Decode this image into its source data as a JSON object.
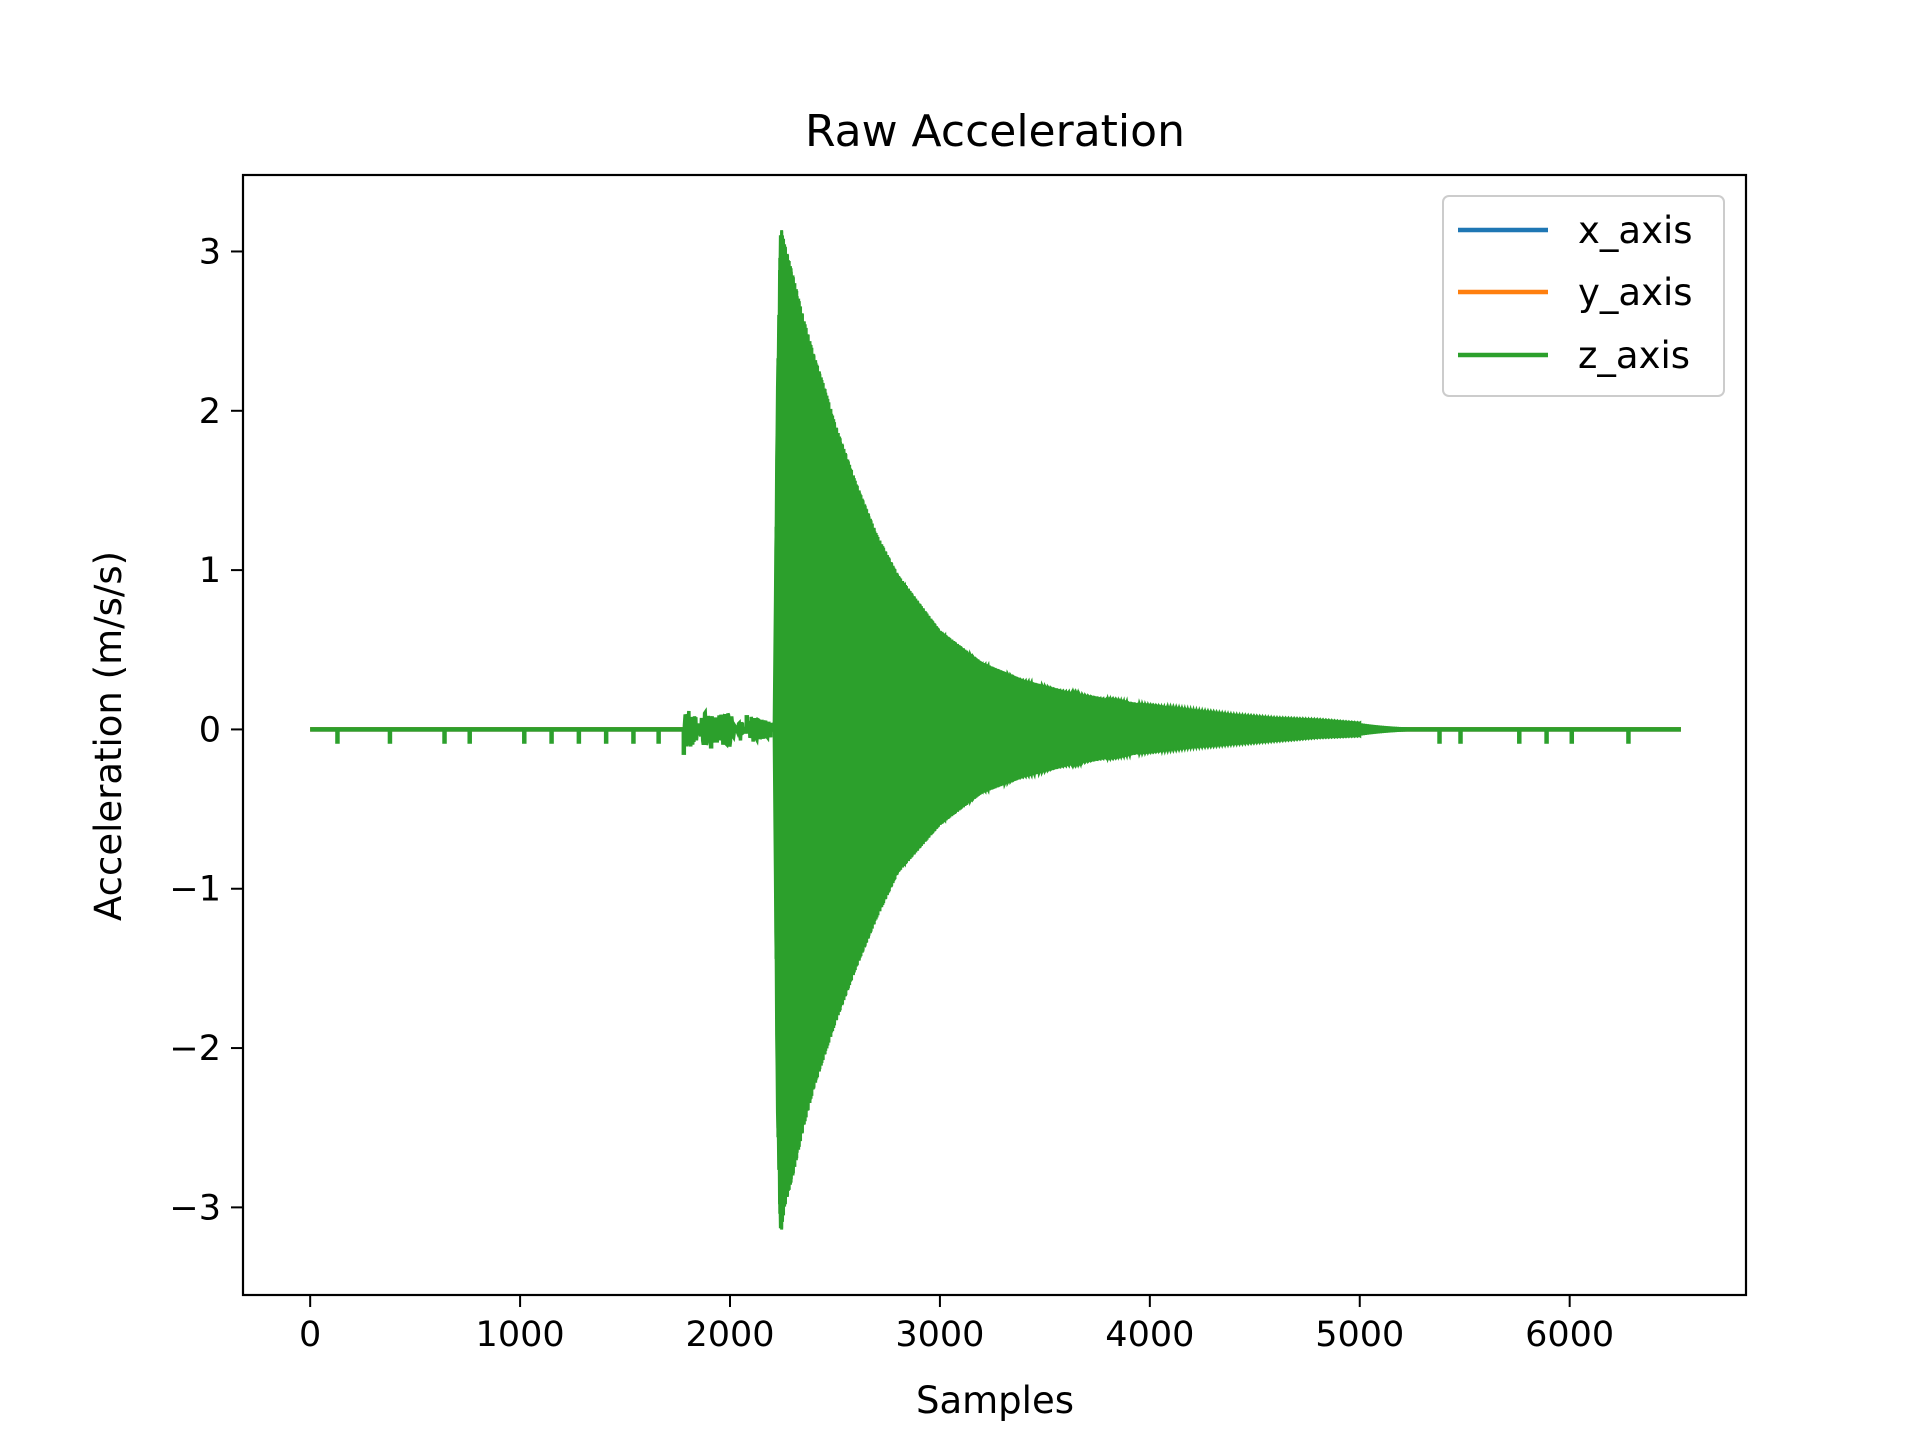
{
  "chart_data": {
    "type": "line",
    "title": "Raw Acceleration",
    "xlabel": "Samples",
    "ylabel": "Acceleration (m/s/s)",
    "xlim": [
      -320,
      6840
    ],
    "ylim": [
      -3.55,
      3.48
    ],
    "xticks": [
      0,
      1000,
      2000,
      3000,
      4000,
      5000,
      6000
    ],
    "xtick_labels": [
      "0",
      "1000",
      "2000",
      "3000",
      "4000",
      "5000",
      "6000"
    ],
    "yticks": [
      -3,
      -2,
      -1,
      0,
      1,
      2,
      3
    ],
    "ytick_labels": [
      "−3",
      "−2",
      "−1",
      "0",
      "1",
      "2",
      "3"
    ],
    "grid": false,
    "legend_position": "top-right",
    "series": [
      {
        "name": "x_axis",
        "color": "#1f77b4",
        "x": [
          0,
          6530
        ],
        "y": [
          0,
          0
        ]
      },
      {
        "name": "y_axis",
        "color": "#ff7f0e",
        "x": [
          0,
          6530
        ],
        "y": [
          0,
          0
        ]
      },
      {
        "name": "z_axis",
        "color": "#2ca02c",
        "sample_range": [
          0,
          6530
        ],
        "baseline": 0,
        "envelope_upper": {
          "x": [
            2210,
            2225,
            2240,
            2260,
            2300,
            2350,
            2400,
            2450,
            2500,
            2600,
            2700,
            2800,
            3000,
            3200,
            3400,
            3600,
            3800,
            4000,
            4200,
            4400,
            4600,
            4800,
            5000
          ],
          "y": [
            0,
            2.12,
            3.17,
            3.05,
            2.85,
            2.58,
            2.35,
            2.15,
            1.92,
            1.55,
            1.22,
            0.97,
            0.62,
            0.42,
            0.31,
            0.24,
            0.19,
            0.15,
            0.12,
            0.09,
            0.07,
            0.06,
            0.04
          ]
        },
        "envelope_lower": {
          "x": [
            2210,
            2225,
            2240,
            2260,
            2300,
            2350,
            2400,
            2450,
            2500,
            2600,
            2700,
            2800,
            3000,
            3200,
            3400,
            3600,
            3800,
            4000,
            4200,
            4400,
            4600,
            4800,
            5000
          ],
          "y": [
            0,
            -2.4,
            -3.2,
            -3.0,
            -2.8,
            -2.5,
            -2.25,
            -2.05,
            -1.85,
            -1.5,
            -1.18,
            -0.9,
            -0.6,
            -0.4,
            -0.3,
            -0.23,
            -0.18,
            -0.14,
            -0.11,
            -0.09,
            -0.07,
            -0.05,
            -0.04
          ]
        },
        "pre_event_noise": {
          "x": [
            1780,
            1800,
            1820,
            1840,
            1860,
            1880,
            1900,
            1950,
            2000,
            2050,
            2100,
            2150,
            2200
          ],
          "y": [
            0.08,
            0.12,
            0.1,
            0.08,
            -0.06,
            -0.12,
            -0.08,
            -0.09,
            -0.11,
            0.07,
            -0.08,
            -0.06,
            -0.05
          ]
        },
        "spikes": {
          "x": [
            130,
            380,
            640,
            760,
            1020,
            1150,
            1280,
            1410,
            1540,
            1660,
            1780,
            1910,
            2080,
            5380,
            5480,
            5760,
            5890,
            6010,
            6280
          ],
          "y": [
            -0.09,
            -0.09,
            -0.09,
            -0.09,
            -0.09,
            -0.09,
            -0.09,
            -0.09,
            -0.09,
            -0.09,
            -0.16,
            -0.12,
            0.09,
            -0.09,
            -0.09,
            -0.09,
            -0.09,
            -0.09,
            -0.09
          ]
        }
      }
    ]
  }
}
